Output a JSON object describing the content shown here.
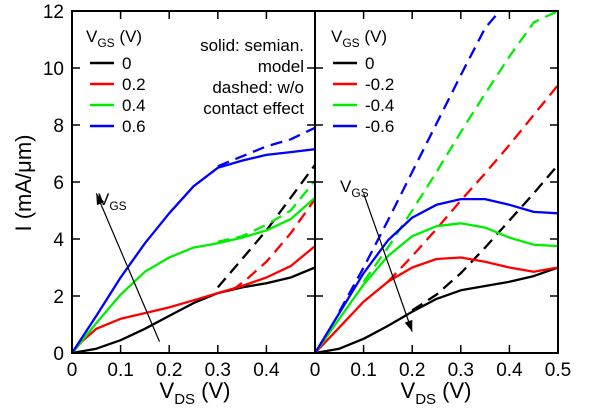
{
  "chart_data": [
    {
      "type": "line",
      "panel": "left",
      "ylabel": "I (mA/μm)",
      "xlabel_main": "V",
      "xlabel_sub": "DS",
      "xlabel_unit": " (V)",
      "xlim": [
        0,
        0.5
      ],
      "ylim": [
        0,
        12
      ],
      "xticks": [
        0,
        0.1,
        0.2,
        0.3,
        0.4
      ],
      "xtick_labels": [
        "0",
        "0.1",
        "0.2",
        "0.3",
        "0.4"
      ],
      "yticks": [
        0,
        2,
        4,
        6,
        8,
        10,
        12
      ],
      "ytick_labels": [
        "0",
        "2",
        "4",
        "6",
        "8",
        "10",
        "12"
      ],
      "legend": {
        "title_main": "V",
        "title_sub": "GS",
        "title_unit": " (V)",
        "placement": "top-left",
        "entries": [
          {
            "label": "0",
            "color": "#000000"
          },
          {
            "label": "0.2",
            "color": "#ff0000"
          },
          {
            "label": "0.4",
            "color": "#00ee00"
          },
          {
            "label": "0.6",
            "color": "#0000ff"
          }
        ]
      },
      "annotations": {
        "notes": [
          "solid: semian.",
          "model",
          "dashed: w/o",
          "contact effect"
        ],
        "arrow_label_main": "V",
        "arrow_label_sub": "GS",
        "arrow_from": [
          0.18,
          0.4
        ],
        "arrow_to": [
          0.05,
          5.6
        ]
      },
      "series": [
        {
          "vgs": "0",
          "style": "solid",
          "color": "#000000",
          "x": [
            0,
            0.05,
            0.1,
            0.15,
            0.2,
            0.25,
            0.3,
            0.35,
            0.4,
            0.45,
            0.5
          ],
          "y": [
            0,
            0.15,
            0.45,
            0.85,
            1.3,
            1.75,
            2.1,
            2.3,
            2.45,
            2.65,
            3.0
          ]
        },
        {
          "vgs": "0",
          "style": "dashed",
          "color": "#000000",
          "x": [
            0.3,
            0.35,
            0.4,
            0.45,
            0.5
          ],
          "y": [
            2.3,
            3.3,
            4.3,
            5.45,
            6.6
          ]
        },
        {
          "vgs": "0.2",
          "style": "solid",
          "color": "#ff0000",
          "x": [
            0,
            0.02,
            0.05,
            0.1,
            0.15,
            0.2,
            0.25,
            0.3,
            0.35,
            0.4,
            0.45,
            0.5
          ],
          "y": [
            0,
            0.4,
            0.85,
            1.2,
            1.4,
            1.6,
            1.85,
            2.1,
            2.35,
            2.65,
            3.05,
            3.75
          ]
        },
        {
          "vgs": "0.2",
          "style": "dashed",
          "color": "#ff0000",
          "x": [
            0.33,
            0.36,
            0.4,
            0.45,
            0.5
          ],
          "y": [
            2.2,
            2.6,
            3.2,
            4.2,
            5.4
          ]
        },
        {
          "vgs": "0.4",
          "style": "solid",
          "color": "#00ee00",
          "x": [
            0,
            0.05,
            0.1,
            0.15,
            0.2,
            0.25,
            0.3,
            0.35,
            0.4,
            0.45,
            0.5
          ],
          "y": [
            0,
            1.05,
            2.05,
            2.85,
            3.35,
            3.7,
            3.85,
            4.05,
            4.3,
            4.7,
            5.45
          ]
        },
        {
          "vgs": "0.4",
          "style": "dashed",
          "color": "#00ee00",
          "x": [
            0.3,
            0.35,
            0.4,
            0.45,
            0.5
          ],
          "y": [
            3.9,
            4.1,
            4.5,
            5.0,
            6.05
          ]
        },
        {
          "vgs": "0.6",
          "style": "solid",
          "color": "#0000ff",
          "x": [
            0,
            0.05,
            0.1,
            0.15,
            0.2,
            0.25,
            0.3,
            0.35,
            0.4,
            0.45,
            0.5
          ],
          "y": [
            0,
            1.3,
            2.65,
            3.85,
            4.9,
            5.85,
            6.5,
            6.75,
            6.95,
            7.05,
            7.15
          ]
        },
        {
          "vgs": "0.6",
          "style": "dashed",
          "color": "#0000ff",
          "x": [
            0.3,
            0.35,
            0.4,
            0.45,
            0.5
          ],
          "y": [
            6.55,
            6.9,
            7.25,
            7.5,
            7.9
          ]
        }
      ]
    },
    {
      "type": "line",
      "panel": "right",
      "xlabel_main": "V",
      "xlabel_sub": "DS",
      "xlabel_unit": " (V)",
      "xlim": [
        0,
        0.5
      ],
      "ylim": [
        0,
        12
      ],
      "xticks": [
        0,
        0.1,
        0.2,
        0.3,
        0.4,
        0.5
      ],
      "xtick_labels": [
        "0",
        "0.1",
        "0.2",
        "0.3",
        "0.4",
        "0.5"
      ],
      "yticks": [
        0,
        2,
        4,
        6,
        8,
        10,
        12
      ],
      "legend": {
        "title_main": "V",
        "title_sub": "GS",
        "title_unit": " (V)",
        "placement": "top-left",
        "entries": [
          {
            "label": "0",
            "color": "#000000"
          },
          {
            "label": "-0.2",
            "color": "#ff0000"
          },
          {
            "label": "-0.4",
            "color": "#00ee00"
          },
          {
            "label": "-0.6",
            "color": "#0000ff"
          }
        ]
      },
      "annotations": {
        "arrow_label_main": "V",
        "arrow_label_sub": "GS",
        "arrow_from": [
          0.1,
          5.6
        ],
        "arrow_to": [
          0.2,
          0.75
        ]
      },
      "series": [
        {
          "vgs": "0",
          "style": "solid",
          "color": "#000000",
          "x": [
            0,
            0.05,
            0.1,
            0.15,
            0.2,
            0.25,
            0.3,
            0.35,
            0.4,
            0.45,
            0.5
          ],
          "y": [
            0,
            0.15,
            0.5,
            0.95,
            1.45,
            1.9,
            2.2,
            2.35,
            2.5,
            2.7,
            3.0
          ]
        },
        {
          "vgs": "0",
          "style": "dashed",
          "color": "#000000",
          "x": [
            0.2,
            0.25,
            0.3,
            0.35,
            0.4,
            0.45,
            0.5
          ],
          "y": [
            1.5,
            2.05,
            2.8,
            3.7,
            4.65,
            5.6,
            6.6
          ]
        },
        {
          "vgs": "-0.2",
          "style": "solid",
          "color": "#ff0000",
          "x": [
            0,
            0.05,
            0.1,
            0.15,
            0.2,
            0.25,
            0.3,
            0.35,
            0.4,
            0.45,
            0.5
          ],
          "y": [
            0,
            0.9,
            1.8,
            2.5,
            3.0,
            3.3,
            3.35,
            3.2,
            3.0,
            2.85,
            3.0
          ]
        },
        {
          "vgs": "-0.2",
          "style": "dashed",
          "color": "#ff0000",
          "x": [
            0.15,
            0.2,
            0.25,
            0.3,
            0.35,
            0.4,
            0.45,
            0.5
          ],
          "y": [
            2.5,
            3.4,
            4.35,
            5.35,
            6.3,
            7.3,
            8.35,
            9.4
          ]
        },
        {
          "vgs": "-0.4",
          "style": "solid",
          "color": "#00ee00",
          "x": [
            0,
            0.05,
            0.1,
            0.15,
            0.2,
            0.25,
            0.3,
            0.35,
            0.4,
            0.45,
            0.5
          ],
          "y": [
            0,
            1.2,
            2.4,
            3.4,
            4.1,
            4.45,
            4.55,
            4.4,
            4.05,
            3.8,
            3.75
          ]
        },
        {
          "vgs": "-0.4",
          "style": "dashed",
          "color": "#00ee00",
          "x": [
            0.1,
            0.15,
            0.2,
            0.25,
            0.3,
            0.35,
            0.4,
            0.45,
            0.5
          ],
          "y": [
            2.5,
            3.7,
            5.0,
            6.35,
            7.75,
            9.1,
            10.4,
            11.6,
            12.0
          ]
        },
        {
          "vgs": "-0.6",
          "style": "solid",
          "color": "#0000ff",
          "x": [
            0,
            0.05,
            0.1,
            0.15,
            0.2,
            0.25,
            0.3,
            0.35,
            0.4,
            0.45,
            0.5
          ],
          "y": [
            0,
            1.4,
            2.8,
            3.95,
            4.75,
            5.2,
            5.4,
            5.4,
            5.2,
            4.95,
            4.9
          ]
        },
        {
          "vgs": "-0.6",
          "style": "dashed",
          "color": "#0000ff",
          "x": [
            0.05,
            0.1,
            0.15,
            0.2,
            0.25,
            0.3,
            0.35,
            0.38
          ],
          "y": [
            1.45,
            3.0,
            4.65,
            6.35,
            8.05,
            9.75,
            11.4,
            12.0
          ]
        }
      ]
    }
  ]
}
